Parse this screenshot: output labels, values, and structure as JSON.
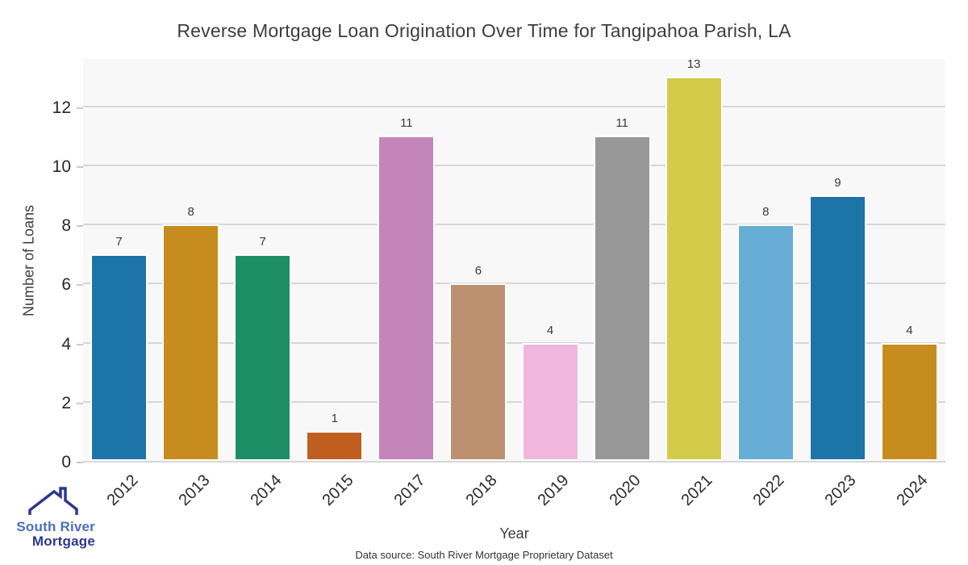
{
  "chart_data": {
    "type": "bar",
    "title": "Reverse Mortgage Loan Origination Over Time for Tangipahoa Parish, LA",
    "xlabel": "Year",
    "ylabel": "Number of Loans",
    "categories": [
      "2012",
      "2013",
      "2014",
      "2015",
      "2017",
      "2018",
      "2019",
      "2020",
      "2021",
      "2022",
      "2023",
      "2024"
    ],
    "values": [
      7,
      8,
      7,
      1,
      11,
      6,
      4,
      11,
      13,
      8,
      9,
      4
    ],
    "bar_colors": [
      "#1d74a6",
      "#c78c1e",
      "#1e8e66",
      "#bf5e1e",
      "#c385ba",
      "#bd906f",
      "#f1b6dd",
      "#989898",
      "#d3cb49",
      "#67aed7",
      "#1d74a6",
      "#c78c1e"
    ],
    "yticks": [
      0,
      2,
      4,
      6,
      8,
      10,
      12
    ],
    "ylim": [
      0,
      13.66
    ],
    "grid": true,
    "legend": "none",
    "plot_background": "#f8f8f8",
    "gridline_color": "#d6d6d6"
  },
  "footer": {
    "source_text": "Data source: South River Mortgage Proprietary Dataset"
  },
  "logo": {
    "line1": "South River",
    "line2": "Mortgage",
    "color1": "#4a6fba",
    "color2": "#2b3990",
    "icon": "house-roof-icon"
  }
}
